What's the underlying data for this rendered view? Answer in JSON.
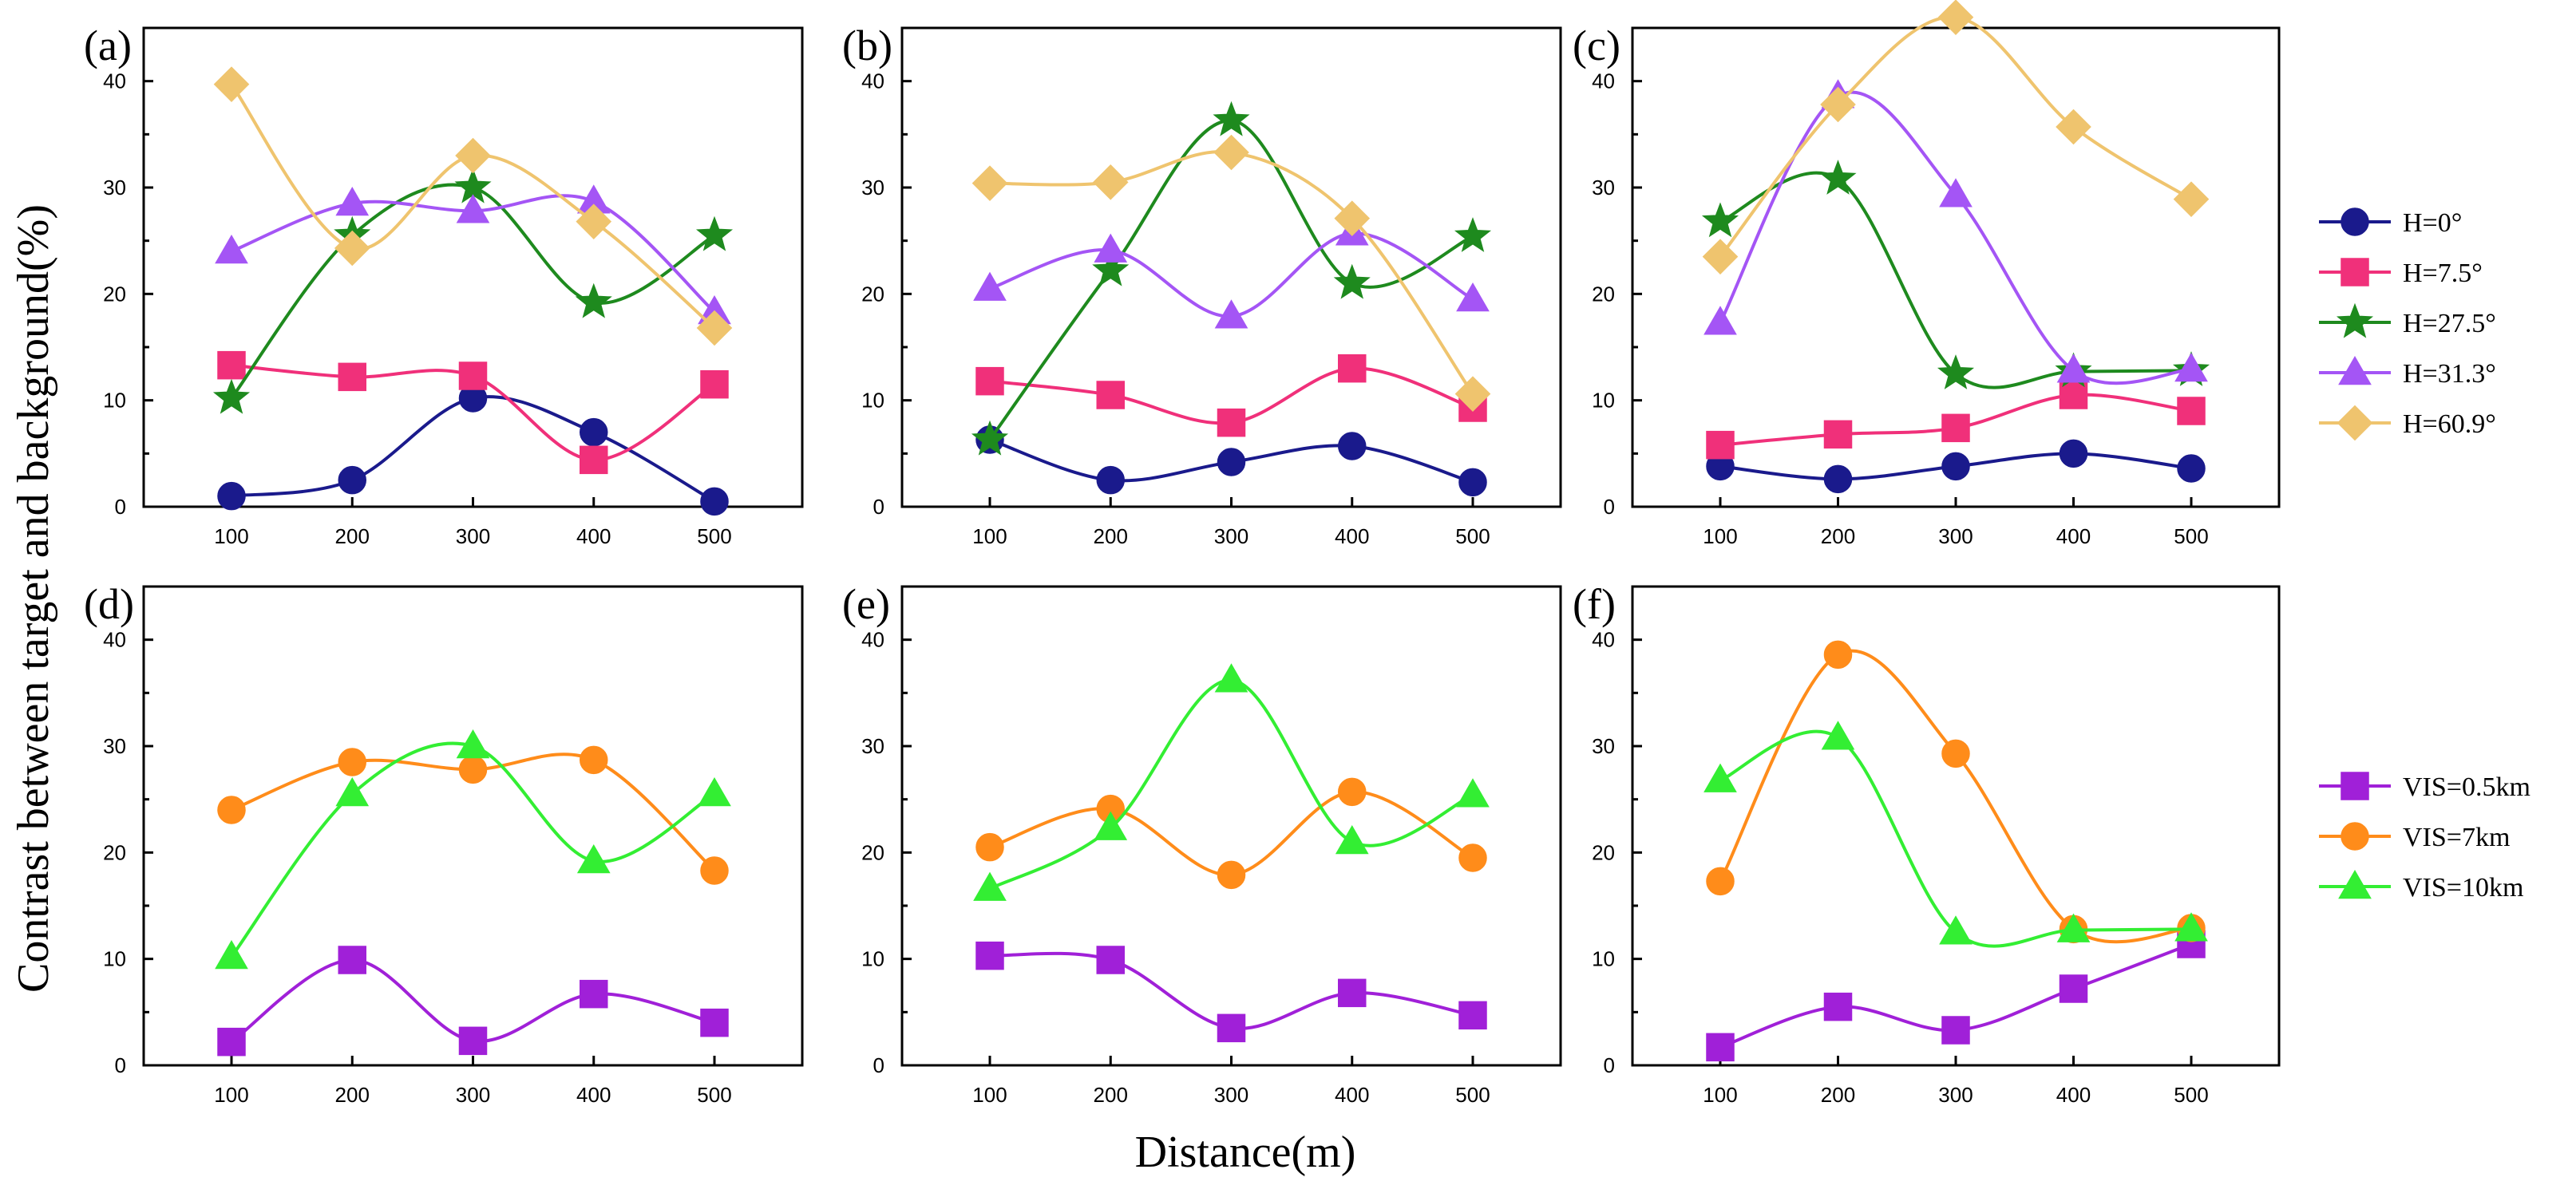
{
  "figure": {
    "xlabel": "Distance(m)",
    "ylabel": "Contrast between target and background(%)"
  },
  "legends": {
    "top": [
      {
        "name": "H=0°",
        "color": "#1a1a8c",
        "marker": "circle"
      },
      {
        "name": "H=7.5°",
        "color": "#f0307a",
        "marker": "square"
      },
      {
        "name": "H=27.5°",
        "color": "#1e8a1e",
        "marker": "star"
      },
      {
        "name": "H=31.3°",
        "color": "#a455f5",
        "marker": "triangle"
      },
      {
        "name": "H=60.9°",
        "color": "#efc46e",
        "marker": "diamond"
      }
    ],
    "bottom": [
      {
        "name": "VIS=0.5km",
        "color": "#a020d8",
        "marker": "square"
      },
      {
        "name": "VIS=7km",
        "color": "#ff8c1a",
        "marker": "circle"
      },
      {
        "name": "VIS=10km",
        "color": "#33ee33",
        "marker": "triangle"
      }
    ]
  },
  "chart_data": [
    {
      "panel": "(a)",
      "type": "line",
      "legend": "top",
      "x": [
        100,
        200,
        300,
        400,
        500
      ],
      "xticks": [
        "100",
        "200",
        "300",
        "400",
        "500"
      ],
      "ylim": [
        0,
        45
      ],
      "yticks": [
        "0",
        "10",
        "20",
        "30",
        "40"
      ],
      "series": [
        {
          "name": "H=0°",
          "values": [
            1.0,
            2.5,
            10.2,
            7.0,
            0.5
          ]
        },
        {
          "name": "H=7.5°",
          "values": [
            13.3,
            12.2,
            12.3,
            4.4,
            11.5
          ]
        },
        {
          "name": "H=27.5°",
          "values": [
            10.2,
            25.5,
            30.0,
            19.2,
            25.5
          ]
        },
        {
          "name": "H=31.3°",
          "values": [
            24.0,
            28.5,
            27.8,
            28.7,
            18.3
          ]
        },
        {
          "name": "H=60.9°",
          "values": [
            39.7,
            24.3,
            33.0,
            26.8,
            16.8
          ]
        }
      ]
    },
    {
      "panel": "(b)",
      "type": "line",
      "legend": "top",
      "x": [
        100,
        200,
        300,
        400,
        500
      ],
      "xticks": [
        "100",
        "200",
        "300",
        "400",
        "500"
      ],
      "ylim": [
        0,
        45
      ],
      "yticks": [
        "0",
        "10",
        "20",
        "30",
        "40"
      ],
      "series": [
        {
          "name": "H=0°",
          "values": [
            6.3,
            2.5,
            4.2,
            5.7,
            2.3
          ]
        },
        {
          "name": "H=7.5°",
          "values": [
            11.8,
            10.5,
            7.9,
            13.0,
            9.3
          ]
        },
        {
          "name": "H=27.5°",
          "values": [
            6.3,
            22.2,
            36.3,
            21.0,
            25.4
          ]
        },
        {
          "name": "H=31.3°",
          "values": [
            20.5,
            24.1,
            17.9,
            25.7,
            19.5
          ]
        },
        {
          "name": "H=60.9°",
          "values": [
            30.4,
            30.5,
            33.3,
            27.1,
            10.6
          ]
        }
      ]
    },
    {
      "panel": "(c)",
      "type": "line",
      "legend": "top",
      "x": [
        100,
        200,
        300,
        400,
        500
      ],
      "xticks": [
        "100",
        "200",
        "300",
        "400",
        "500"
      ],
      "ylim": [
        0,
        45
      ],
      "yticks": [
        "0",
        "10",
        "20",
        "30",
        "40"
      ],
      "series": [
        {
          "name": "H=0°",
          "values": [
            3.8,
            2.6,
            3.8,
            5.0,
            3.6
          ]
        },
        {
          "name": "H=7.5°",
          "values": [
            5.8,
            6.8,
            7.4,
            10.5,
            9.0
          ]
        },
        {
          "name": "H=27.5°",
          "values": [
            26.8,
            30.8,
            12.5,
            12.7,
            12.8
          ]
        },
        {
          "name": "H=31.3°",
          "values": [
            17.3,
            38.6,
            29.3,
            12.8,
            12.9
          ]
        },
        {
          "name": "H=60.9°",
          "values": [
            23.5,
            37.8,
            46.0,
            35.7,
            28.9
          ]
        }
      ]
    },
    {
      "panel": "(d)",
      "type": "line",
      "legend": "bottom",
      "x": [
        100,
        200,
        300,
        400,
        500
      ],
      "xticks": [
        "100",
        "200",
        "300",
        "400",
        "500"
      ],
      "ylim": [
        0,
        45
      ],
      "yticks": [
        "0",
        "10",
        "20",
        "30",
        "40"
      ],
      "series": [
        {
          "name": "VIS=0.5km",
          "values": [
            2.2,
            9.9,
            2.3,
            6.7,
            4.0
          ]
        },
        {
          "name": "VIS=7km",
          "values": [
            24.0,
            28.5,
            27.8,
            28.7,
            18.3
          ]
        },
        {
          "name": "VIS=10km",
          "values": [
            10.2,
            25.5,
            30.0,
            19.2,
            25.5
          ]
        }
      ]
    },
    {
      "panel": "(e)",
      "type": "line",
      "legend": "bottom",
      "x": [
        100,
        200,
        300,
        400,
        500
      ],
      "xticks": [
        "100",
        "200",
        "300",
        "400",
        "500"
      ],
      "ylim": [
        0,
        45
      ],
      "yticks": [
        "0",
        "10",
        "20",
        "30",
        "40"
      ],
      "series": [
        {
          "name": "VIS=0.5km",
          "values": [
            10.3,
            9.9,
            3.5,
            6.8,
            4.7
          ]
        },
        {
          "name": "VIS=7km",
          "values": [
            20.5,
            24.1,
            17.9,
            25.7,
            19.5
          ]
        },
        {
          "name": "VIS=10km",
          "values": [
            16.6,
            22.3,
            36.2,
            21.0,
            25.4
          ]
        }
      ]
    },
    {
      "panel": "(f)",
      "type": "line",
      "legend": "bottom",
      "x": [
        100,
        200,
        300,
        400,
        500
      ],
      "xticks": [
        "100",
        "200",
        "300",
        "400",
        "500"
      ],
      "ylim": [
        0,
        45
      ],
      "yticks": [
        "0",
        "10",
        "20",
        "30",
        "40"
      ],
      "series": [
        {
          "name": "VIS=0.5km",
          "values": [
            1.7,
            5.5,
            3.3,
            7.2,
            11.4
          ]
        },
        {
          "name": "VIS=7km",
          "values": [
            17.3,
            38.6,
            29.3,
            12.8,
            12.9
          ]
        },
        {
          "name": "VIS=10km",
          "values": [
            26.8,
            30.8,
            12.5,
            12.7,
            12.8
          ]
        }
      ]
    }
  ]
}
